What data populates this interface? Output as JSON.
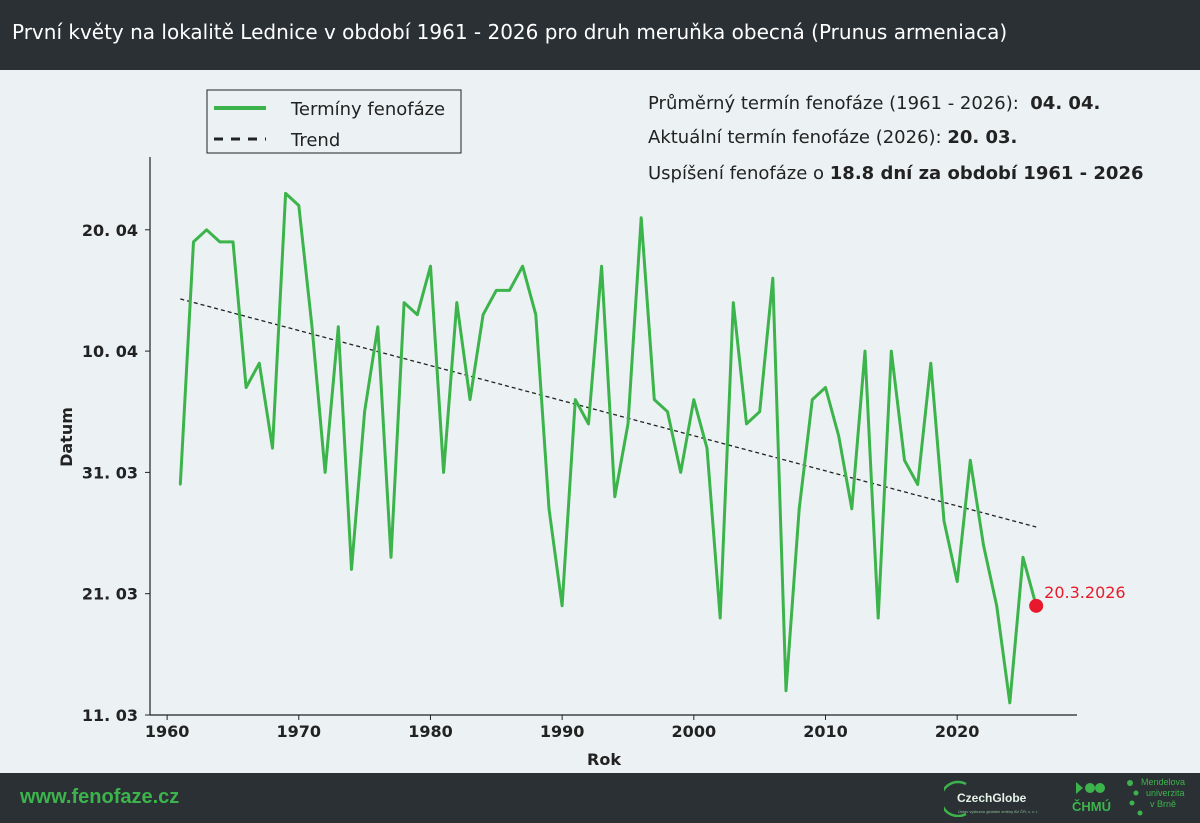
{
  "header": {
    "title": "První květy na lokalitě Lednice v období 1961 - 2026 pro druh meruňka obecná (Prunus armeniaca)"
  },
  "info": {
    "avg_label": "Průměrný termín fenofáze (1961 - 2026):",
    "avg_value": "04. 04.",
    "current_label": "Aktuální termín fenofáze (2026):",
    "current_value": "20. 03.",
    "shift_label": "Uspíšení fenofáze o",
    "shift_value": "18.8 dní za období 1961 - 2026"
  },
  "footer": {
    "url": "www.fenofaze.cz",
    "logo1": "CzechGlobe",
    "logo1_sub": "Ústav výzkumu globální změny AV ČR, v. v. i.",
    "logo2": "ČHMÚ",
    "logo3_lines": [
      "Mendelova",
      "univerzita",
      "v Brně"
    ]
  },
  "colors": {
    "series": "#3cb44b",
    "trend": "#222222",
    "highlight": "#e8192c",
    "bg": "#ecf2f3"
  },
  "chart_data": {
    "type": "line",
    "xlabel": "Rok",
    "ylabel": "Datum",
    "xlim": [
      1958.7,
      2029.1
    ],
    "ylim": [
      70,
      116
    ],
    "xticks": [
      1960,
      1970,
      1980,
      1990,
      2000,
      2010,
      2020
    ],
    "yticks": [
      {
        "value": 70,
        "label": "11. 03"
      },
      {
        "value": 80,
        "label": "21. 03"
      },
      {
        "value": 90,
        "label": "31. 03"
      },
      {
        "value": 100,
        "label": "10. 04"
      },
      {
        "value": 110,
        "label": "20. 04"
      }
    ],
    "legend": [
      {
        "name": "Termíny fenofáze",
        "style": "solid"
      },
      {
        "name": "Trend",
        "style": "dashed"
      }
    ],
    "legend_position": "top-left",
    "series": [
      {
        "name": "Termíny fenofáze",
        "x": [
          1961,
          1962,
          1963,
          1964,
          1965,
          1966,
          1967,
          1968,
          1969,
          1970,
          1971,
          1972,
          1973,
          1974,
          1975,
          1976,
          1977,
          1978,
          1979,
          1980,
          1981,
          1982,
          1983,
          1984,
          1985,
          1986,
          1987,
          1988,
          1989,
          1990,
          1991,
          1992,
          1993,
          1994,
          1995,
          1996,
          1997,
          1998,
          1999,
          2000,
          2001,
          2002,
          2003,
          2004,
          2005,
          2006,
          2007,
          2008,
          2009,
          2010,
          2011,
          2012,
          2013,
          2014,
          2015,
          2016,
          2017,
          2018,
          2019,
          2020,
          2021,
          2022,
          2023,
          2024,
          2025,
          2026
        ],
        "y": [
          89,
          109,
          110,
          109,
          109,
          97,
          99,
          92,
          113,
          112,
          102,
          90,
          102,
          82,
          95,
          102,
          83,
          104,
          103,
          107,
          90,
          104,
          96,
          103,
          105,
          105,
          107,
          103,
          87,
          79,
          96,
          94,
          107,
          88,
          94,
          111,
          96,
          95,
          90,
          96,
          92,
          78,
          104,
          94,
          95,
          106,
          72,
          87,
          96,
          97,
          93,
          87,
          100,
          78,
          100,
          91,
          89,
          99,
          86,
          81,
          91,
          84,
          79,
          71,
          83,
          79
        ],
        "style": "solid"
      },
      {
        "name": "Trend",
        "x": [
          1961,
          2026
        ],
        "y": [
          104.3,
          85.5
        ],
        "style": "dashed"
      }
    ],
    "highlight": {
      "x": 2026,
      "y": 79,
      "label": "20.3.2026"
    }
  }
}
